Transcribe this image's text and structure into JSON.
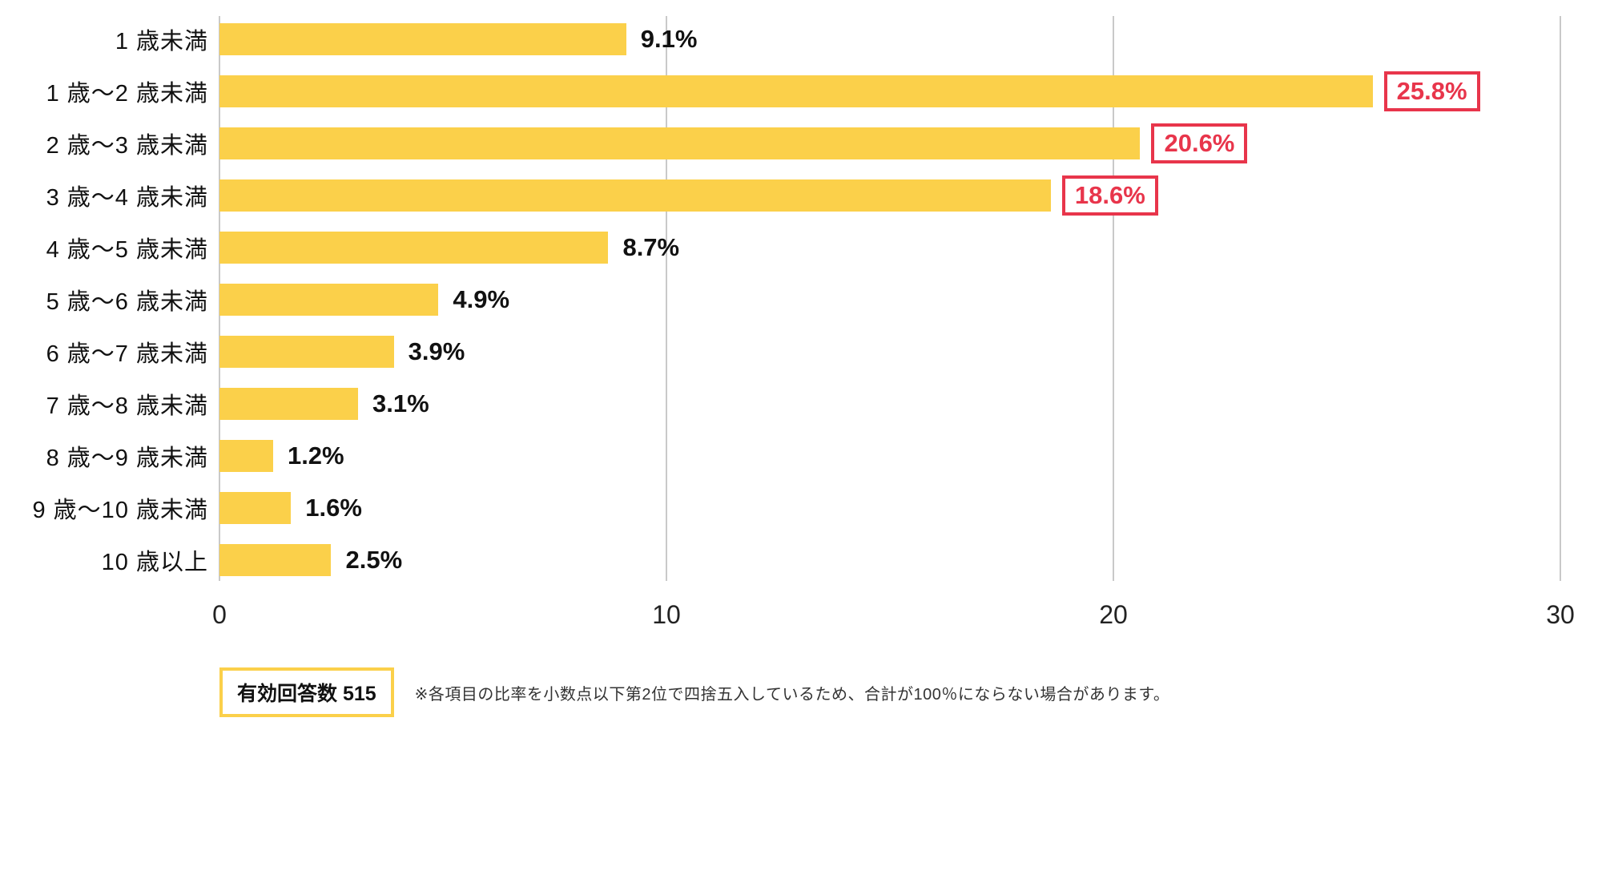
{
  "chart_data": {
    "type": "bar",
    "orientation": "horizontal",
    "title": "",
    "xlabel": "",
    "ylabel": "",
    "xlim": [
      0,
      30
    ],
    "x_ticks": [
      0,
      10,
      20,
      30
    ],
    "grid": true,
    "bar_color": "#fbd04a",
    "highlight_color": "#e8354b",
    "categories": [
      "1 歳未満",
      "1 歳～2 歳未満",
      "2 歳～3 歳未満",
      "3 歳～4 歳未満",
      "4 歳～5 歳未満",
      "5 歳～6 歳未満",
      "6 歳～7 歳未満",
      "7 歳～8 歳未満",
      "8 歳～9 歳未満",
      "9 歳～10 歳未満",
      "10 歳以上"
    ],
    "values": [
      9.1,
      25.8,
      20.6,
      18.6,
      8.7,
      4.9,
      3.9,
      3.1,
      1.2,
      1.6,
      2.5
    ],
    "value_labels": [
      "9.1%",
      "25.8%",
      "20.6%",
      "18.6%",
      "8.7%",
      "4.9%",
      "3.9%",
      "3.1%",
      "1.2%",
      "1.6%",
      "2.5%"
    ],
    "highlighted": [
      false,
      true,
      true,
      true,
      false,
      false,
      false,
      false,
      false,
      false,
      false
    ],
    "legend_position": "none"
  },
  "footer": {
    "badge": "有効回答数 515",
    "note": "※各項目の比率を小数点以下第2位で四捨五入しているため、合計が100％にならない場合があります。"
  }
}
